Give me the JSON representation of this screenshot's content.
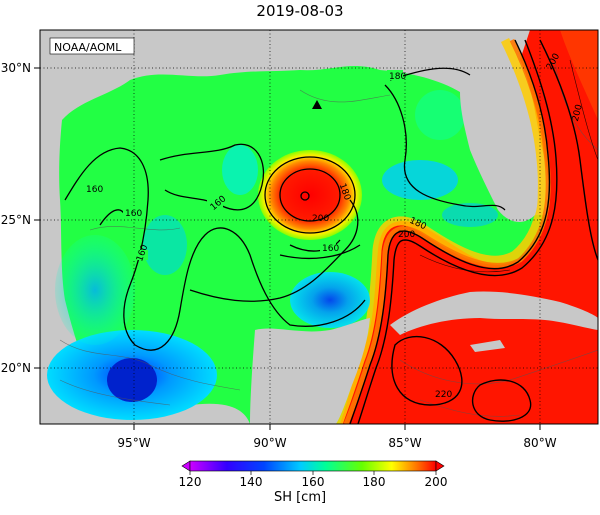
{
  "title": "2019-08-03",
  "credit": "NOAA/AOML",
  "lon_ticks": [
    "95°W",
    "90°W",
    "85°W",
    "80°W"
  ],
  "lat_ticks": [
    "30°N",
    "25°N",
    "20°N"
  ],
  "colorbar": {
    "label": "SH [cm]",
    "ticks": [
      "120",
      "140",
      "160",
      "180",
      "200"
    ],
    "min": 120,
    "max": 200,
    "colors": [
      "#cc00ff",
      "#6600ff",
      "#0000ff",
      "#0066ff",
      "#00ccff",
      "#00ffcc",
      "#00ff66",
      "#33ff00",
      "#99ff00",
      "#ffff00",
      "#ffaa00",
      "#ff5500",
      "#ff0000"
    ]
  },
  "contour_labels": [
    "160",
    "160",
    "160",
    "160",
    "160",
    "180",
    "180",
    "180",
    "200",
    "200",
    "200",
    "220",
    "200"
  ],
  "marker": "triangle"
}
